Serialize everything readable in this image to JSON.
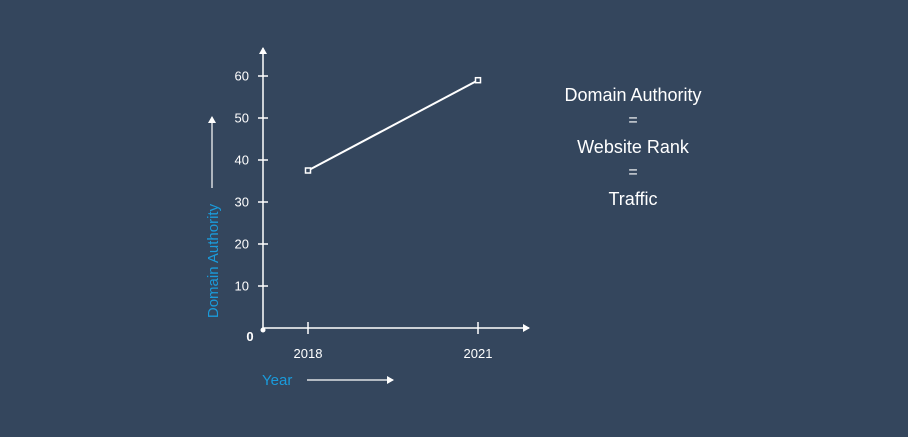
{
  "chart_data": {
    "type": "line",
    "categories": [
      "2018",
      "2021"
    ],
    "series": [
      {
        "values": [
          37.5,
          59
        ]
      }
    ],
    "xlabel": "Year",
    "ylabel": "Domain Authority",
    "yticks": [
      10,
      20,
      30,
      40,
      50,
      60
    ],
    "zero_label": "0",
    "ylim": [
      0,
      60
    ],
    "grid": false,
    "colors": {
      "line": "#ffffff",
      "axis": "#ffffff",
      "axis_title": "#1a9bdb",
      "background": "#34465d"
    }
  },
  "equation": {
    "line1": "Domain Authority",
    "sep1": "=",
    "line2": "Website Rank",
    "sep2": "=",
    "line3": "Traffic"
  }
}
